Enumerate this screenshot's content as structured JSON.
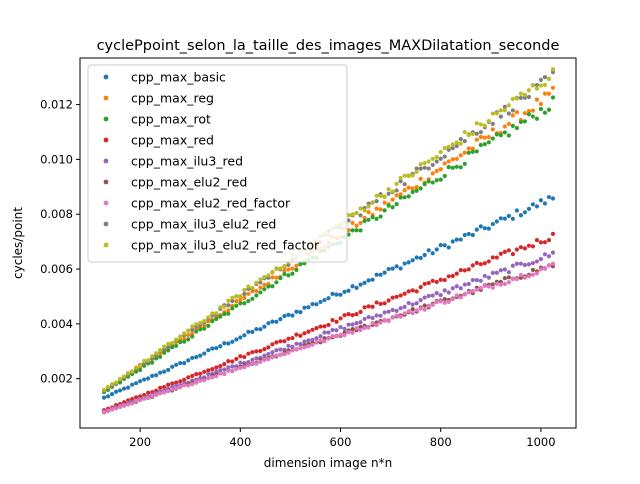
{
  "chart_data": {
    "type": "scatter",
    "title": "cyclePpoint_selon_la_taille_des_images_MAXDilatation_seconde",
    "xlabel": "dimension image n*n",
    "ylabel": "cycles/point",
    "xlim": [
      80,
      1070
    ],
    "ylim": [
      0.0002,
      0.0137
    ],
    "x_ticks": [
      200,
      400,
      600,
      800,
      1000
    ],
    "y_ticks": [
      0.002,
      0.004,
      0.006,
      0.008,
      0.01,
      0.012
    ],
    "x_tick_labels": [
      "200",
      "400",
      "600",
      "800",
      "1000"
    ],
    "y_tick_labels": [
      "0.002",
      "0.004",
      "0.006",
      "0.008",
      "0.010",
      "0.012"
    ],
    "x_start": 128,
    "x_end": 1024,
    "x_step": 8,
    "legend_position": "upper-left",
    "grid": false,
    "series": [
      {
        "name": "cpp_max_basic",
        "color": "#1f77b4",
        "y_start": 0.0013,
        "y_end": 0.0086
      },
      {
        "name": "cpp_max_reg",
        "color": "#ff7f0e",
        "y_start": 0.00155,
        "y_end": 0.0124
      },
      {
        "name": "cpp_max_rot",
        "color": "#2ca02c",
        "y_start": 0.0015,
        "y_end": 0.01205
      },
      {
        "name": "cpp_max_red",
        "color": "#d62728",
        "y_start": 0.00085,
        "y_end": 0.0072
      },
      {
        "name": "cpp_max_ilu3_red",
        "color": "#9467bd",
        "y_start": 0.0008,
        "y_end": 0.00655
      },
      {
        "name": "cpp_max_elu2_red",
        "color": "#8c564b",
        "y_start": 0.00078,
        "y_end": 0.00615
      },
      {
        "name": "cpp_max_elu2_red_factor",
        "color": "#e377c2",
        "y_start": 0.00078,
        "y_end": 0.00612
      },
      {
        "name": "cpp_max_ilu3_elu2_red",
        "color": "#7f7f7f",
        "y_start": 0.00155,
        "y_end": 0.013
      },
      {
        "name": "cpp_max_ilu3_elu2_red_factor",
        "color": "#bcbd22",
        "y_start": 0.00158,
        "y_end": 0.0131
      }
    ]
  }
}
